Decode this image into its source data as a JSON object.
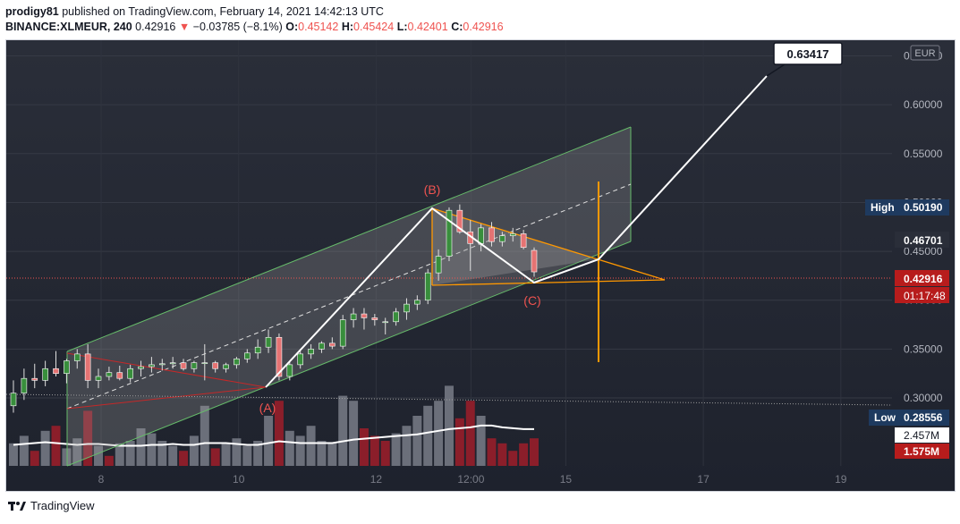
{
  "header": {
    "user": "prodigy81",
    "published_text": "published on TradingView.com, February 14, 2021 14:42:13 UTC",
    "symbol": "BINANCE:XLMEUR, 240",
    "price": "0.42916",
    "change_arrow": "▼",
    "change": "−0.03785 (−8.1%)",
    "o_label": "O:",
    "o": "0.45142",
    "h_label": "H:",
    "h": "0.45424",
    "l_label": "L:",
    "l": "0.42401",
    "c_label": "C:",
    "c": "0.42916"
  },
  "footer": {
    "brand": "TradingView"
  },
  "chart_data": {
    "type": "candlestick",
    "currency": "EUR",
    "y_ticks": [
      "0.65000",
      "0.60000",
      "0.55000",
      "0.50000",
      "0.45000",
      "0.40000",
      "0.35000",
      "0.30000"
    ],
    "y_tick_values": [
      0.65,
      0.6,
      0.55,
      0.5,
      0.45,
      0.4,
      0.35,
      0.3
    ],
    "x_ticks": [
      "8",
      "10",
      "12",
      "12:00",
      "15",
      "17",
      "19"
    ],
    "ylim": [
      0.236,
      0.666
    ],
    "labels": {
      "target": "0.63417",
      "high_label": "High",
      "high": "0.50190",
      "mark": "0.46701",
      "current": "0.42916",
      "countdown": "01:17:48",
      "low_label": "Low",
      "low": "0.28556",
      "vol_ma": "2.457M",
      "vol": "1.575M"
    },
    "annotations": [
      "(A)",
      "(B)",
      "(C)"
    ],
    "colors": {
      "up": "#2e7d32",
      "down": "#c62828",
      "channel": "#66bb6a",
      "triangle": "#ff9800",
      "path": "#ffffff",
      "wave_label": "#ef5350",
      "current": "#b71c1c",
      "axis_text": "#b2b5be"
    },
    "candles": [
      {
        "o": 0.292,
        "h": 0.318,
        "l": 0.285,
        "c": 0.305
      },
      {
        "o": 0.305,
        "h": 0.33,
        "l": 0.298,
        "c": 0.32
      },
      {
        "o": 0.32,
        "h": 0.335,
        "l": 0.31,
        "c": 0.318
      },
      {
        "o": 0.318,
        "h": 0.338,
        "l": 0.312,
        "c": 0.33
      },
      {
        "o": 0.33,
        "h": 0.348,
        "l": 0.322,
        "c": 0.325
      },
      {
        "o": 0.325,
        "h": 0.34,
        "l": 0.315,
        "c": 0.338
      },
      {
        "o": 0.338,
        "h": 0.35,
        "l": 0.33,
        "c": 0.345
      },
      {
        "o": 0.345,
        "h": 0.355,
        "l": 0.31,
        "c": 0.318
      },
      {
        "o": 0.318,
        "h": 0.33,
        "l": 0.31,
        "c": 0.322
      },
      {
        "o": 0.322,
        "h": 0.332,
        "l": 0.318,
        "c": 0.326
      },
      {
        "o": 0.326,
        "h": 0.333,
        "l": 0.318,
        "c": 0.32
      },
      {
        "o": 0.32,
        "h": 0.334,
        "l": 0.316,
        "c": 0.33
      },
      {
        "o": 0.33,
        "h": 0.338,
        "l": 0.322,
        "c": 0.332
      },
      {
        "o": 0.332,
        "h": 0.342,
        "l": 0.326,
        "c": 0.334
      },
      {
        "o": 0.334,
        "h": 0.34,
        "l": 0.328,
        "c": 0.335
      },
      {
        "o": 0.335,
        "h": 0.342,
        "l": 0.33,
        "c": 0.336
      },
      {
        "o": 0.336,
        "h": 0.34,
        "l": 0.328,
        "c": 0.33
      },
      {
        "o": 0.33,
        "h": 0.338,
        "l": 0.326,
        "c": 0.336
      },
      {
        "o": 0.336,
        "h": 0.355,
        "l": 0.318,
        "c": 0.336
      },
      {
        "o": 0.336,
        "h": 0.338,
        "l": 0.326,
        "c": 0.33
      },
      {
        "o": 0.33,
        "h": 0.336,
        "l": 0.326,
        "c": 0.334
      },
      {
        "o": 0.334,
        "h": 0.342,
        "l": 0.33,
        "c": 0.34
      },
      {
        "o": 0.34,
        "h": 0.35,
        "l": 0.336,
        "c": 0.346
      },
      {
        "o": 0.346,
        "h": 0.36,
        "l": 0.34,
        "c": 0.352
      },
      {
        "o": 0.352,
        "h": 0.37,
        "l": 0.346,
        "c": 0.362
      },
      {
        "o": 0.362,
        "h": 0.366,
        "l": 0.318,
        "c": 0.322
      },
      {
        "o": 0.322,
        "h": 0.338,
        "l": 0.318,
        "c": 0.334
      },
      {
        "o": 0.334,
        "h": 0.348,
        "l": 0.33,
        "c": 0.345
      },
      {
        "o": 0.345,
        "h": 0.355,
        "l": 0.34,
        "c": 0.35
      },
      {
        "o": 0.35,
        "h": 0.358,
        "l": 0.346,
        "c": 0.356
      },
      {
        "o": 0.356,
        "h": 0.362,
        "l": 0.35,
        "c": 0.353
      },
      {
        "o": 0.353,
        "h": 0.385,
        "l": 0.35,
        "c": 0.38
      },
      {
        "o": 0.38,
        "h": 0.392,
        "l": 0.372,
        "c": 0.386
      },
      {
        "o": 0.386,
        "h": 0.392,
        "l": 0.37,
        "c": 0.382
      },
      {
        "o": 0.382,
        "h": 0.386,
        "l": 0.374,
        "c": 0.38
      },
      {
        "o": 0.378,
        "h": 0.382,
        "l": 0.365,
        "c": 0.378
      },
      {
        "o": 0.378,
        "h": 0.392,
        "l": 0.374,
        "c": 0.388
      },
      {
        "o": 0.388,
        "h": 0.402,
        "l": 0.38,
        "c": 0.396
      },
      {
        "o": 0.396,
        "h": 0.405,
        "l": 0.39,
        "c": 0.4
      },
      {
        "o": 0.4,
        "h": 0.432,
        "l": 0.396,
        "c": 0.428
      },
      {
        "o": 0.428,
        "h": 0.452,
        "l": 0.42,
        "c": 0.445
      },
      {
        "o": 0.445,
        "h": 0.495,
        "l": 0.44,
        "c": 0.492
      },
      {
        "o": 0.492,
        "h": 0.498,
        "l": 0.468,
        "c": 0.47
      },
      {
        "o": 0.47,
        "h": 0.482,
        "l": 0.43,
        "c": 0.458
      },
      {
        "o": 0.458,
        "h": 0.478,
        "l": 0.45,
        "c": 0.474
      },
      {
        "o": 0.474,
        "h": 0.48,
        "l": 0.455,
        "c": 0.46
      },
      {
        "o": 0.46,
        "h": 0.47,
        "l": 0.455,
        "c": 0.466
      },
      {
        "o": 0.466,
        "h": 0.474,
        "l": 0.46,
        "c": 0.468
      },
      {
        "o": 0.468,
        "h": 0.472,
        "l": 0.452,
        "c": 0.454
      },
      {
        "o": 0.451,
        "h": 0.454,
        "l": 0.424,
        "c": 0.429
      }
    ],
    "volume": [
      {
        "v": 0.9,
        "up": true
      },
      {
        "v": 1.2,
        "up": true
      },
      {
        "v": 0.6,
        "up": false
      },
      {
        "v": 1.4,
        "up": true
      },
      {
        "v": 1.6,
        "up": false
      },
      {
        "v": 0.7,
        "up": true
      },
      {
        "v": 1.1,
        "up": true
      },
      {
        "v": 2.2,
        "up": false
      },
      {
        "v": 0.8,
        "up": true
      },
      {
        "v": 0.4,
        "up": false
      },
      {
        "v": 0.9,
        "up": true
      },
      {
        "v": 1.0,
        "up": true
      },
      {
        "v": 1.5,
        "up": true
      },
      {
        "v": 1.3,
        "up": true
      },
      {
        "v": 1.0,
        "up": true
      },
      {
        "v": 0.8,
        "up": true
      },
      {
        "v": 0.6,
        "up": false
      },
      {
        "v": 1.2,
        "up": true
      },
      {
        "v": 2.4,
        "up": true
      },
      {
        "v": 0.7,
        "up": false
      },
      {
        "v": 0.9,
        "up": true
      },
      {
        "v": 1.1,
        "up": true
      },
      {
        "v": 0.8,
        "up": true
      },
      {
        "v": 1.0,
        "up": true
      },
      {
        "v": 2.0,
        "up": true
      },
      {
        "v": 2.6,
        "up": false
      },
      {
        "v": 1.4,
        "up": true
      },
      {
        "v": 1.2,
        "up": true
      },
      {
        "v": 1.6,
        "up": true
      },
      {
        "v": 1.0,
        "up": true
      },
      {
        "v": 0.9,
        "up": true
      },
      {
        "v": 2.8,
        "up": true
      },
      {
        "v": 2.6,
        "up": true
      },
      {
        "v": 1.5,
        "up": false
      },
      {
        "v": 1.2,
        "up": false
      },
      {
        "v": 1.0,
        "up": false
      },
      {
        "v": 1.3,
        "up": true
      },
      {
        "v": 1.6,
        "up": true
      },
      {
        "v": 2.0,
        "up": true
      },
      {
        "v": 2.4,
        "up": true
      },
      {
        "v": 2.6,
        "up": true
      },
      {
        "v": 3.2,
        "up": true
      },
      {
        "v": 1.9,
        "up": false
      },
      {
        "v": 2.6,
        "up": false
      },
      {
        "v": 2.0,
        "up": true
      },
      {
        "v": 1.1,
        "up": false
      },
      {
        "v": 0.9,
        "up": false
      },
      {
        "v": 0.6,
        "up": false
      },
      {
        "v": 0.9,
        "up": false
      },
      {
        "v": 1.1,
        "up": false
      }
    ],
    "volume_ma": [
      1.2,
      1.25,
      1.3,
      1.35,
      1.3,
      1.25,
      1.2,
      1.25,
      1.25,
      1.2,
      1.15,
      1.15,
      1.15,
      1.2,
      1.2,
      1.25,
      1.2,
      1.2,
      1.3,
      1.3,
      1.3,
      1.25,
      1.2,
      1.2,
      1.3,
      1.4,
      1.35,
      1.3,
      1.3,
      1.3,
      1.3,
      1.4,
      1.5,
      1.55,
      1.6,
      1.65,
      1.7,
      1.75,
      1.8,
      1.9,
      2.0,
      2.1,
      2.15,
      2.2,
      2.3,
      2.3,
      2.2,
      2.15,
      2.1,
      2.1
    ]
  }
}
